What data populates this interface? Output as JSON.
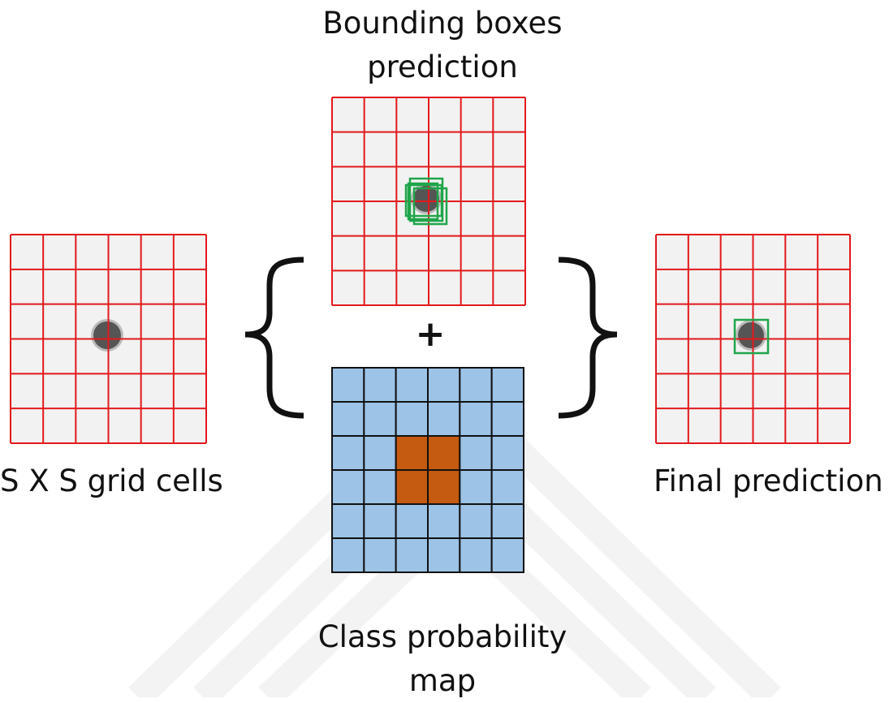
{
  "labels": {
    "grid_cells": "S X S grid cells",
    "bbox_line1": "Bounding boxes",
    "bbox_line2": "prediction",
    "class_line1": "Class probability",
    "class_line2": "map",
    "final": "Final prediction",
    "plus": "+"
  },
  "grid": {
    "rows": 6,
    "cols": 6
  },
  "class_map": {
    "highlighted_cells": [
      [
        2,
        2
      ],
      [
        2,
        3
      ],
      [
        3,
        2
      ],
      [
        3,
        3
      ]
    ]
  },
  "colors": {
    "grid_line": "#e3191c",
    "image_bg": "#f2f2f2",
    "object": "#555555",
    "bbox": "#1fa54a",
    "class_bg": "#9dc3e6",
    "class_object": "#c55a11",
    "class_line": "#111111",
    "bracket": "#111111",
    "watermark": "#f3f3f3"
  }
}
